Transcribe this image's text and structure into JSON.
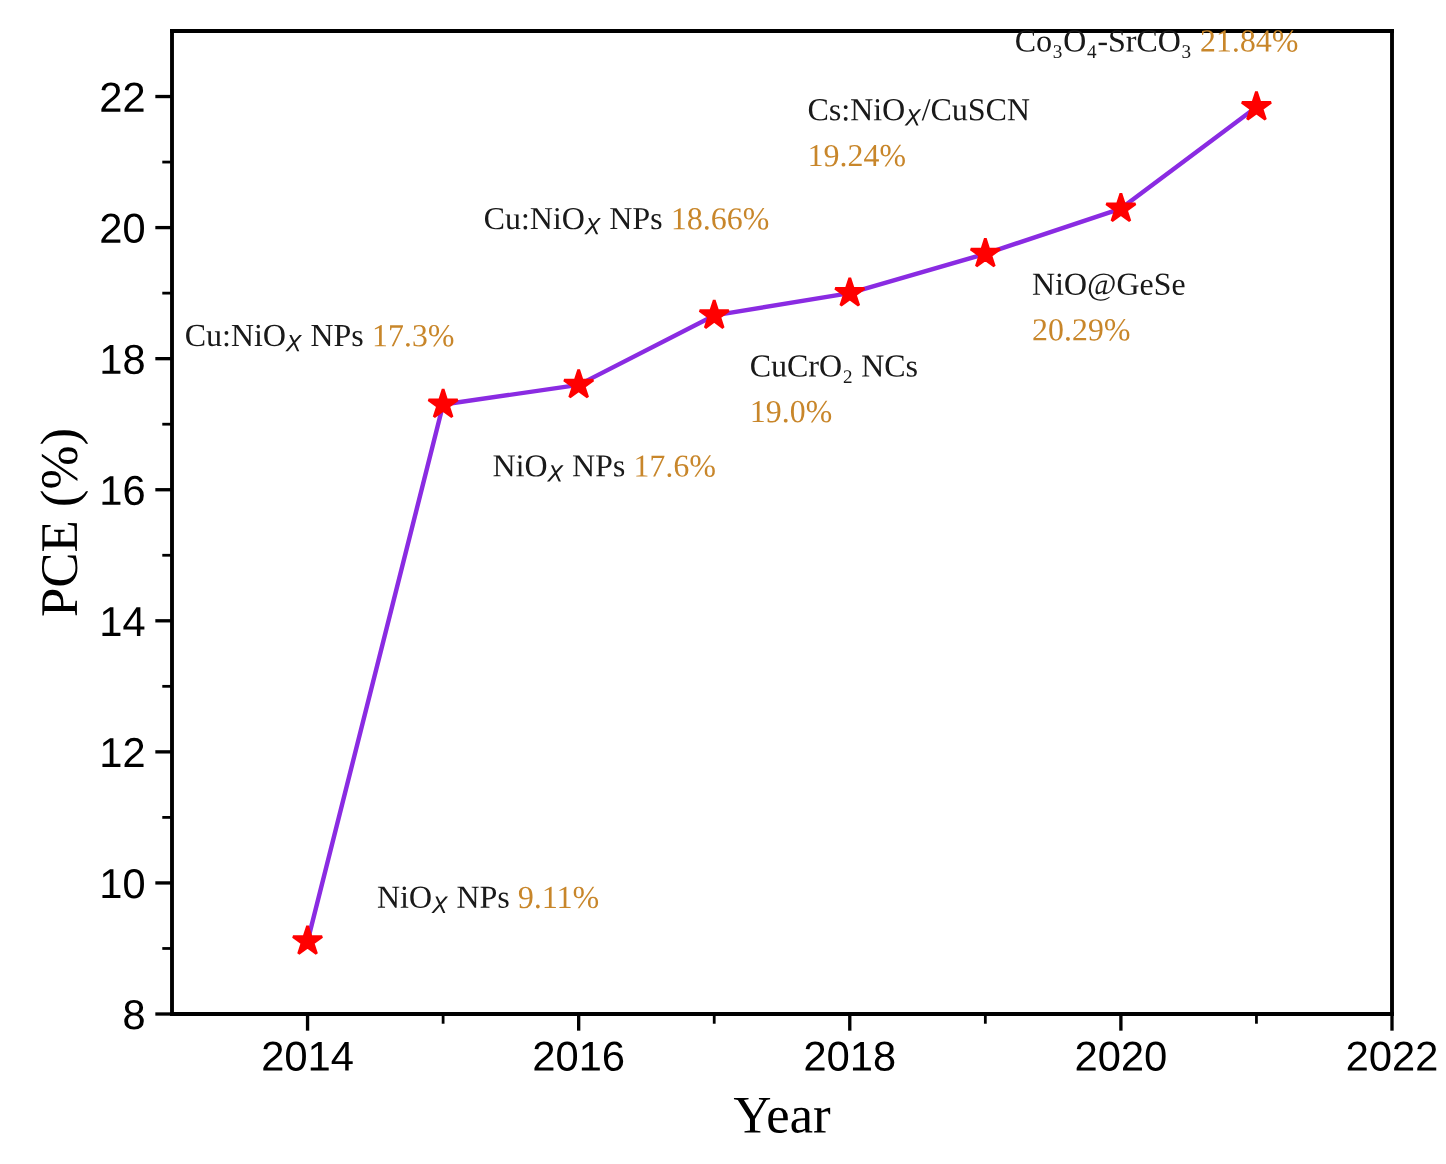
{
  "chart_data": {
    "type": "line",
    "xlabel": "Year",
    "ylabel": "PCE (%)",
    "x": [
      2014,
      2015,
      2016,
      2017,
      2018,
      2019,
      2020,
      2021
    ],
    "series": [
      {
        "color": "#8a2be2",
        "values": [
          9.11,
          17.3,
          17.6,
          18.66,
          19.0,
          19.6,
          20.29,
          21.84
        ]
      }
    ],
    "marker": "star",
    "line_style": "solid",
    "grid": false,
    "legend": false,
    "xlim": [
      2013,
      2022
    ],
    "xticks": [
      2014,
      2016,
      2018,
      2020,
      2022
    ],
    "ylim": [
      8,
      23
    ],
    "yticks": [
      8,
      10,
      12,
      14,
      16,
      18,
      20,
      22
    ],
    "annotations": [
      {
        "text": "NiO$_{X}$ NPs 9.11%",
        "x": 2014,
        "y": 9.11
      },
      {
        "text": "Cu:NiO$_{X}$ NPs 17.3%",
        "x": 2015,
        "y": 17.3
      },
      {
        "text": "NiO$_{X}$ NPs 17.6%",
        "x": 2016,
        "y": 17.6
      },
      {
        "text": "Cu:NiO$_{X}$ NPs 18.66%",
        "x": 2017,
        "y": 18.66
      },
      {
        "text": "CuCrO₂ NCs\n19.0%",
        "x": 2018,
        "y": 19.0
      },
      {
        "text": "Cs:NiO$_{X}$/CuSCN\n19.24%",
        "x": 2019,
        "y": 19.6
      },
      {
        "text": "NiO@GeSe\n20.29%",
        "x": 2020,
        "y": 20.29
      },
      {
        "text": "Co₃O₄-SrCO₃ 21.84%",
        "x": 2021,
        "y": 21.84
      }
    ]
  }
}
